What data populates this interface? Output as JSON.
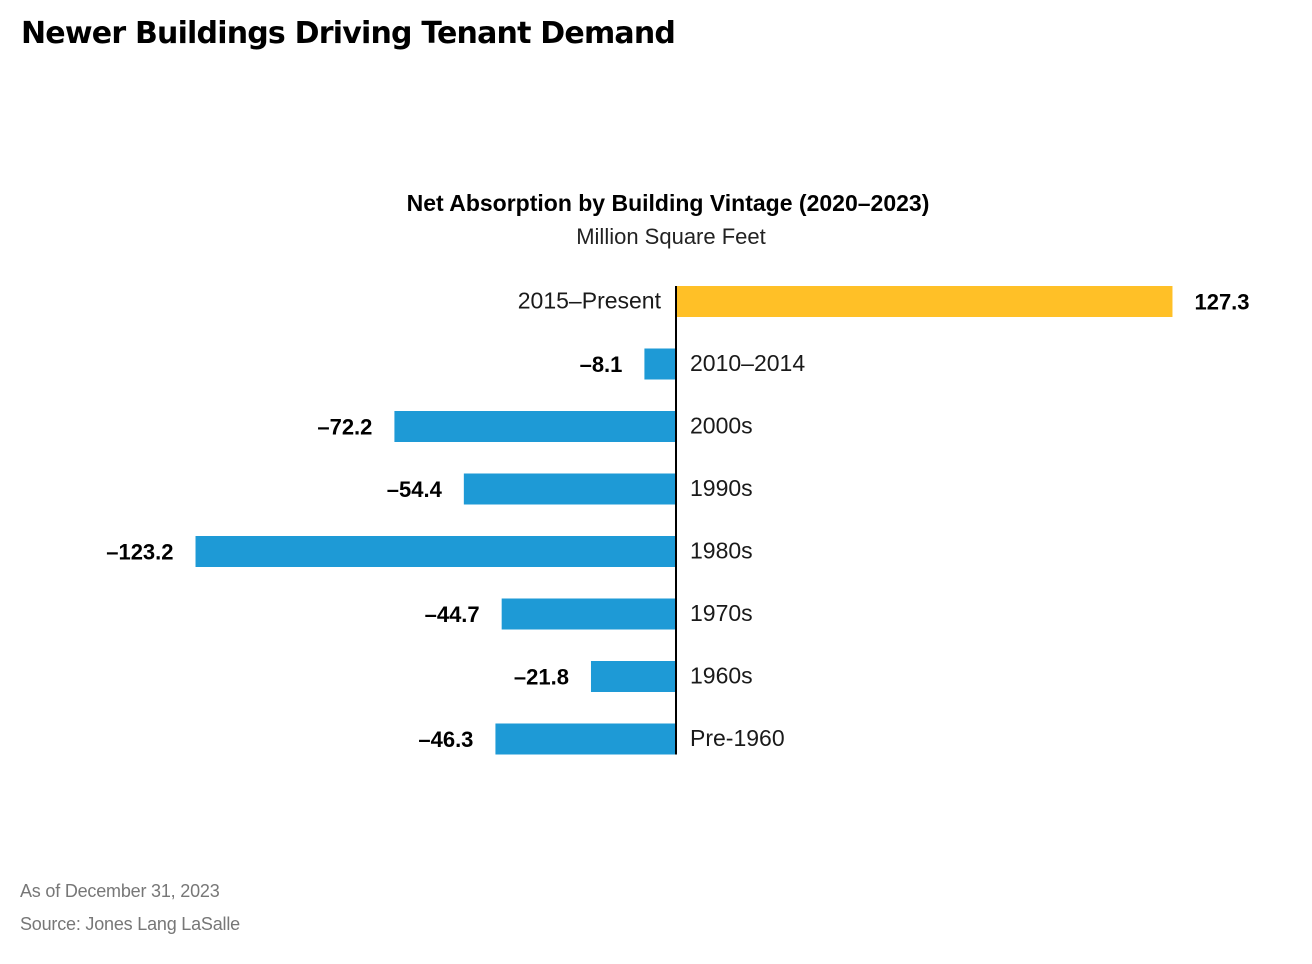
{
  "page": {
    "title": "Newer Buildings Driving Tenant Demand",
    "as_of": "As of December 31, 2023",
    "source": "Source: Jones Lang LaSalle"
  },
  "colors": {
    "positive_bar": "#FFC027",
    "negative_bar": "#1E9AD6",
    "axis": "#000000"
  },
  "chart_data": {
    "type": "bar",
    "orientation": "horizontal",
    "title": "Net Absorption by Building Vintage (2020–2023)",
    "subtitle": "Million Square Feet",
    "categories": [
      "2015–Present",
      "2010–2014",
      "2000s",
      "1990s",
      "1980s",
      "1970s",
      "1960s",
      "Pre-1960"
    ],
    "values": [
      127.3,
      -8.1,
      -72.2,
      -54.4,
      -123.2,
      -44.7,
      -21.8,
      -46.3
    ],
    "value_labels": [
      "127.3",
      "–8.1",
      "–72.2",
      "–54.4",
      "–123.2",
      "–44.7",
      "–21.8",
      "–46.3"
    ],
    "xlim": [
      -123.2,
      127.3
    ],
    "grid": false,
    "legend": "none"
  }
}
